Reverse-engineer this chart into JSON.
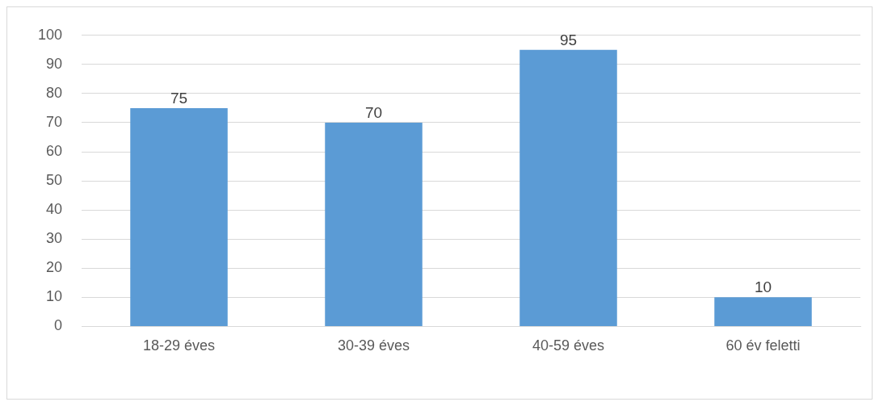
{
  "chart_data": {
    "type": "bar",
    "categories": [
      "18-29 éves",
      "30-39 éves",
      "40-59 éves",
      "60 év feletti"
    ],
    "values": [
      75,
      70,
      95,
      10
    ],
    "color": "#5b9bd5",
    "ylim": [
      0,
      100
    ],
    "yticks": [
      0,
      10,
      20,
      30,
      40,
      50,
      60,
      70,
      80,
      90,
      100
    ],
    "grid": "y",
    "data_labels": true,
    "legend": false
  }
}
